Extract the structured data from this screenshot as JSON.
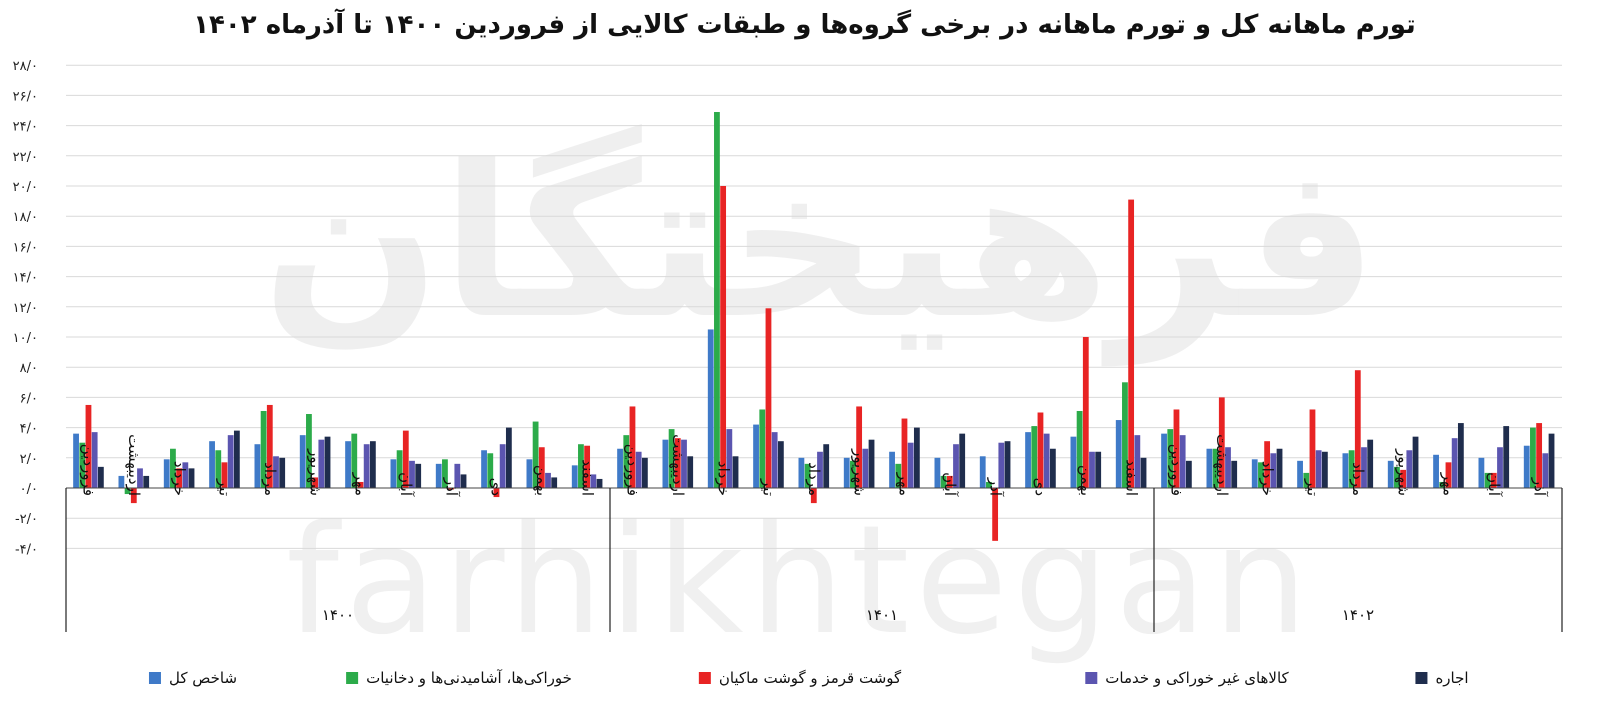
{
  "title": "تورم ماهانه کل و تورم ماهانه در برخی گروه‌ها و طبقات کالایی از فروردین ۱۴۰۰ تا آذرماه ۱۴۰۲",
  "chart_data": {
    "type": "bar",
    "title": "تورم ماهانه کل و تورم ماهانه در برخی گروه‌ها و طبقات کالایی از فروردین ۱۴۰۰ تا آذرماه ۱۴۰۲",
    "ylim": [
      -4,
      28
    ],
    "yticks": [
      -4,
      -2,
      0,
      2,
      4,
      6,
      8,
      10,
      12,
      14,
      16,
      18,
      20,
      22,
      24,
      26,
      28
    ],
    "ytick_labels": [
      "-۴/۰",
      "-۲/۰",
      "۰/۰",
      "۲/۰",
      "۴/۰",
      "۶/۰",
      "۸/۰",
      "۱۰/۰",
      "۱۲/۰",
      "۱۴/۰",
      "۱۶/۰",
      "۱۸/۰",
      "۲۰/۰",
      "۲۲/۰",
      "۲۴/۰",
      "۲۶/۰",
      "۲۸/۰"
    ],
    "grid": true,
    "legend_position": "bottom",
    "groups": [
      {
        "label": "۱۴۰۰",
        "count": 12
      },
      {
        "label": "۱۴۰۱",
        "count": 12
      },
      {
        "label": "۱۴۰۲",
        "count": 9
      }
    ],
    "categories": [
      "فروردین",
      "اردیبهشت",
      "خرداد",
      "تیر",
      "مرداد",
      "شهریور",
      "مهر",
      "آبان",
      "آذر",
      "دی",
      "بهمن",
      "اسفند",
      "فروردین",
      "اردیبهشت",
      "خرداد",
      "تیر",
      "مرداد",
      "شهریور",
      "مهر",
      "آبان",
      "آذر",
      "دی",
      "بهمن",
      "اسفند",
      "فروردین",
      "اردیبهشت",
      "خرداد",
      "تیر",
      "مرداد",
      "شهریور",
      "مهر",
      "آبان",
      "آذر"
    ],
    "series": [
      {
        "name": "شاخص کل",
        "color": "#3f7ac8",
        "values": [
          3.6,
          0.8,
          1.9,
          3.1,
          2.9,
          3.5,
          3.1,
          1.9,
          1.6,
          2.5,
          1.9,
          1.5,
          2.6,
          3.2,
          10.5,
          4.2,
          2.0,
          2.0,
          2.4,
          2.0,
          2.1,
          3.7,
          3.4,
          4.5,
          3.6,
          2.6,
          1.9,
          1.8,
          2.3,
          1.8,
          2.2,
          2.0,
          2.8
        ]
      },
      {
        "name": "خوراکی‌ها، آشامیدنی‌ها و دخانیات",
        "color": "#2cab4a",
        "values": [
          3.0,
          -0.4,
          2.6,
          2.5,
          5.1,
          4.9,
          3.6,
          2.5,
          1.9,
          2.3,
          4.4,
          2.9,
          3.5,
          3.9,
          24.9,
          5.2,
          1.6,
          1.8,
          1.6,
          0.8,
          0.4,
          4.1,
          5.1,
          7.0,
          3.9,
          2.6,
          1.7,
          1.0,
          2.5,
          1.4,
          0.4,
          1.0,
          4.0
        ]
      },
      {
        "name": "گوشت قرمز و گوشت ماکیان",
        "color": "#e82424",
        "values": [
          5.5,
          -1.0,
          1.3,
          1.7,
          5.5,
          0.7,
          0.4,
          3.8,
          -0.1,
          -0.6,
          2.7,
          2.8,
          5.4,
          3.3,
          20.0,
          11.9,
          -1.0,
          5.4,
          4.6,
          0.8,
          -3.5,
          5.0,
          10.0,
          19.1,
          5.2,
          6.0,
          3.1,
          5.2,
          7.8,
          1.2,
          1.7,
          1.0,
          4.3
        ]
      },
      {
        "name": "کالاهای غیر خوراکی و خدمات",
        "color": "#5b55b0",
        "values": [
          3.7,
          1.3,
          1.7,
          3.5,
          2.1,
          3.2,
          2.9,
          1.8,
          1.6,
          2.9,
          1.0,
          0.9,
          2.4,
          3.2,
          3.9,
          3.7,
          2.4,
          2.6,
          3.0,
          2.9,
          3.0,
          3.6,
          2.4,
          3.5,
          3.5,
          2.7,
          2.3,
          2.5,
          2.7,
          2.5,
          3.3,
          2.7,
          2.3
        ]
      },
      {
        "name": "اجاره",
        "color": "#1f2d4d",
        "values": [
          1.4,
          0.8,
          1.3,
          3.8,
          2.0,
          3.4,
          3.1,
          1.6,
          0.9,
          4.0,
          0.7,
          0.6,
          2.0,
          2.1,
          2.1,
          3.1,
          2.9,
          3.2,
          4.0,
          3.6,
          3.1,
          2.6,
          2.4,
          2.0,
          1.8,
          1.8,
          2.6,
          2.4,
          3.2,
          3.4,
          4.3,
          4.1,
          3.6
        ]
      }
    ]
  },
  "watermark": {
    "logo_text": "فرهیختگان",
    "latin_text": "farhikhtegan"
  }
}
